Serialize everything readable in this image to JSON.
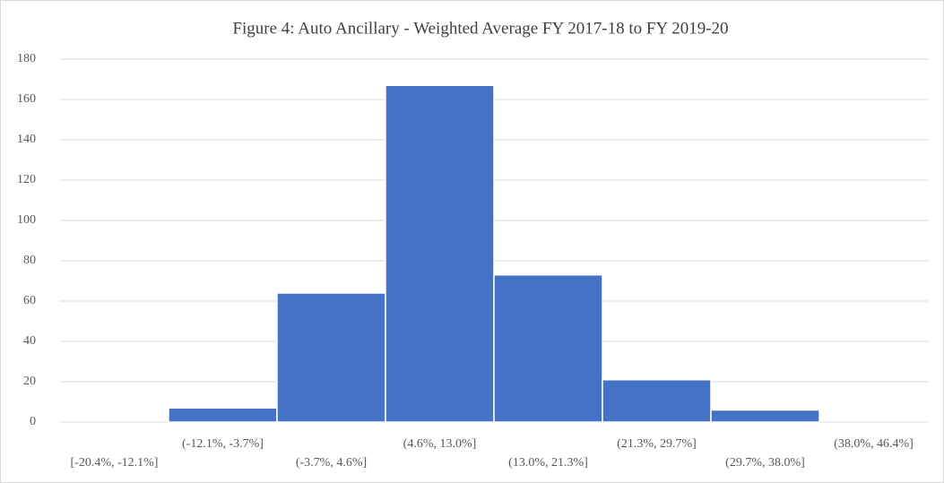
{
  "chart_data": {
    "type": "bar",
    "title": "Figure 4: Auto Ancillary - Weighted Average FY 2017-18 to FY 2019-20",
    "categories": [
      "[-20.4%, -12.1%]",
      "(-12.1%, -3.7%]",
      "(-3.7%, 4.6%]",
      "(4.6%, 13.0%]",
      "(13.0%, 21.3%]",
      "(21.3%, 29.7%]",
      "(29.7%, 38.0%]",
      "(38.0%, 46.4%]"
    ],
    "values": [
      0,
      7,
      64,
      167,
      73,
      21,
      6,
      0
    ],
    "color": "#4472c4",
    "ylim": [
      0,
      180
    ],
    "yticks": [
      0,
      20,
      40,
      60,
      80,
      100,
      120,
      140,
      160,
      180
    ],
    "grid": true
  }
}
